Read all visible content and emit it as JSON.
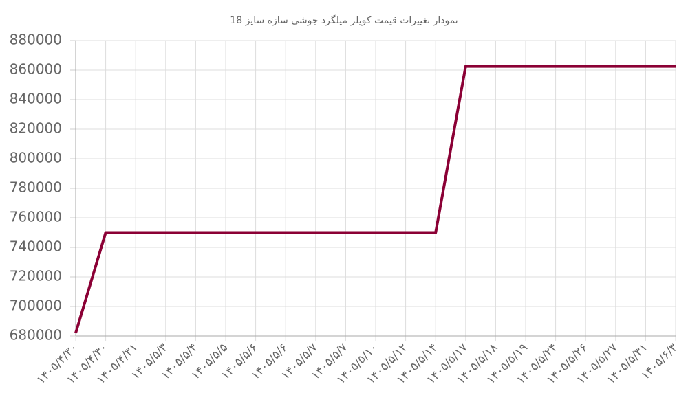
{
  "chart_data": {
    "type": "line",
    "title": "نمودار تغییرات قیمت کویلر میلگرد جوشی سازه سایز 18",
    "categories": [
      "۱۴۰۵/۴/۳۰",
      "۱۴۰۵/۴/۳۰",
      "۱۴۰۵/۴/۳۱",
      "۱۴۰۵/۵/۳",
      "۱۴۰۵/۵/۴",
      "۱۴۰۵/۵/۵",
      "۱۴۰۵/۵/۶",
      "۱۴۰۵/۵/۶",
      "۱۴۰۵/۵/۷",
      "۱۴۰۵/۵/۷",
      "۱۴۰۵/۵/۱۰",
      "۱۴۰۵/۵/۱۲",
      "۱۴۰۵/۵/۱۴",
      "۱۴۰۵/۵/۱۷",
      "۱۴۰۵/۵/۱۸",
      "۱۴۰۵/۵/۱۹",
      "۱۴۰۵/۵/۲۴",
      "۱۴۰۵/۵/۲۶",
      "۱۴۰۵/۵/۲۷",
      "۱۴۰۵/۵/۳۱",
      "۱۴۰۵/۶/۳"
    ],
    "values": [
      682000,
      750000,
      750000,
      750000,
      750000,
      750000,
      750000,
      750000,
      750000,
      750000,
      750000,
      750000,
      750000,
      862500,
      862500,
      862500,
      862500,
      862500,
      862500,
      862500,
      862500
    ],
    "color": "#8b0035",
    "ylim": [
      680000,
      880000
    ],
    "yticks": [
      680000,
      700000,
      720000,
      740000,
      760000,
      780000,
      800000,
      820000,
      840000,
      860000,
      880000
    ],
    "grid": true
  }
}
